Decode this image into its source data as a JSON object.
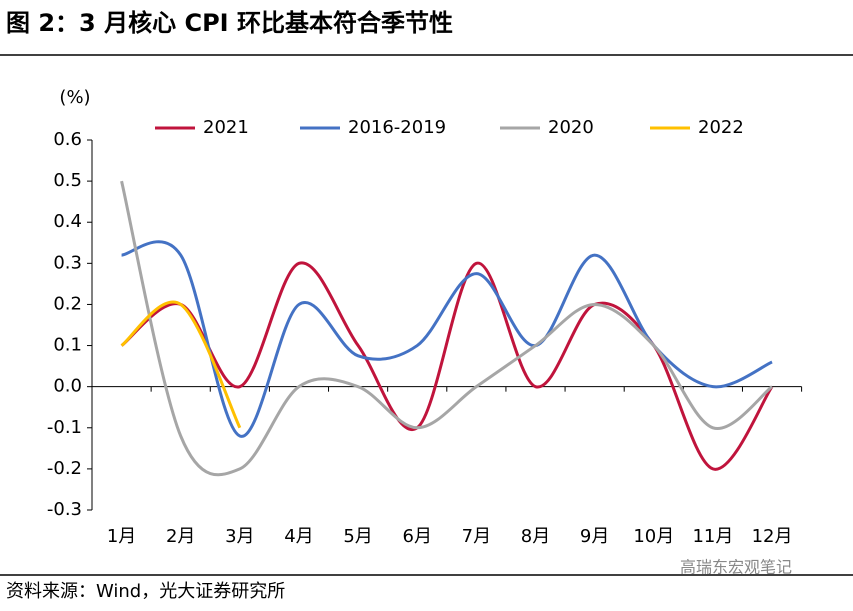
{
  "chart_data": {
    "type": "line",
    "title": "图 2：3 月核心 CPI 环比基本符合季节性",
    "y_label": "(%)",
    "source": "资料来源：Wind，光大证券研究所",
    "watermark": "高瑞东宏观笔记",
    "categories": [
      "1月",
      "2月",
      "3月",
      "4月",
      "5月",
      "6月",
      "7月",
      "8月",
      "9月",
      "10月",
      "11月",
      "12月"
    ],
    "series": [
      {
        "name": "2021",
        "color": "#c0143c",
        "values": [
          0.1,
          0.2,
          0.0,
          0.3,
          0.1,
          -0.1,
          0.3,
          0.0,
          0.2,
          0.1,
          -0.2,
          0.0
        ]
      },
      {
        "name": "2016-2019",
        "color": "#4472c4",
        "values": [
          0.32,
          0.32,
          -0.12,
          0.2,
          0.075,
          0.1,
          0.275,
          0.1,
          0.32,
          0.1,
          0.0,
          0.06
        ]
      },
      {
        "name": "2020",
        "color": "#a6a6a6",
        "values": [
          0.5,
          -0.12,
          -0.2,
          0.0,
          0.0,
          -0.1,
          0.0,
          0.1,
          0.2,
          0.1,
          -0.1,
          0.0
        ]
      },
      {
        "name": "2022",
        "color": "#ffc000",
        "values": [
          0.1,
          0.2,
          -0.1,
          null,
          null,
          null,
          null,
          null,
          null,
          null,
          null,
          null
        ]
      }
    ],
    "ylim": [
      -0.3,
      0.6
    ],
    "yticks": [
      0.6,
      0.5,
      0.4,
      0.3,
      0.2,
      0.1,
      {
        "value": 0,
        "label": "0.0"
      },
      -0.1,
      -0.2,
      -0.3
    ],
    "smooth": true,
    "legend": "top"
  }
}
